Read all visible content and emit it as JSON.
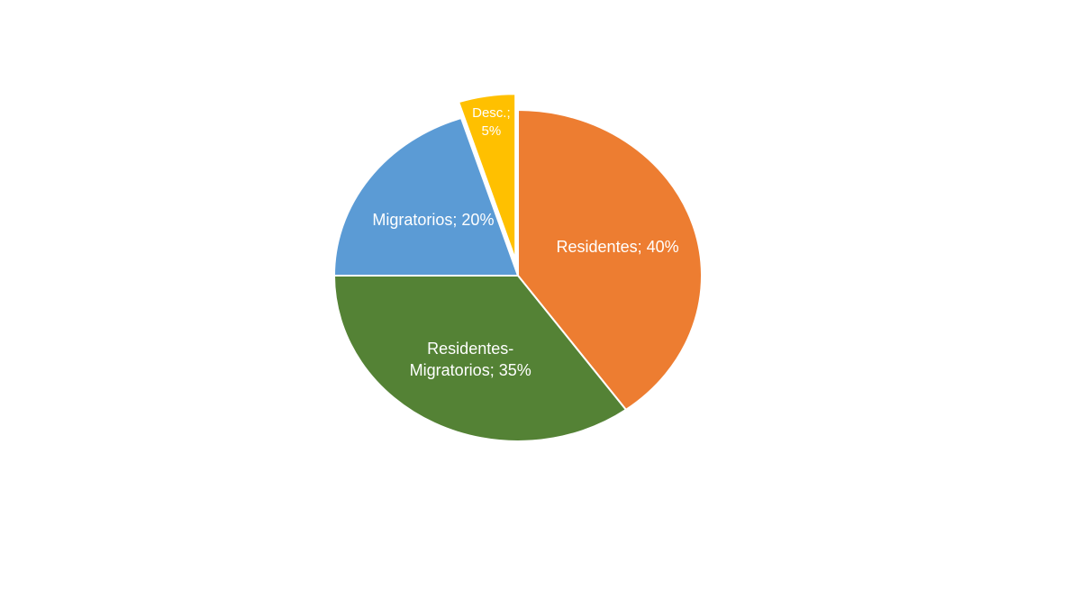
{
  "chart_data": {
    "type": "pie",
    "values": [
      40,
      35,
      20,
      5
    ],
    "value_labels": [
      "Residentes; 40%",
      "Residentes-Migratorios; 35%",
      "Migratorios; 20%",
      "Desc.; 5%"
    ],
    "colors": [
      "#ED7D31",
      "#548235",
      "#5B9BD5",
      "#FFC000"
    ],
    "exploded": [
      false,
      false,
      false,
      true
    ]
  }
}
